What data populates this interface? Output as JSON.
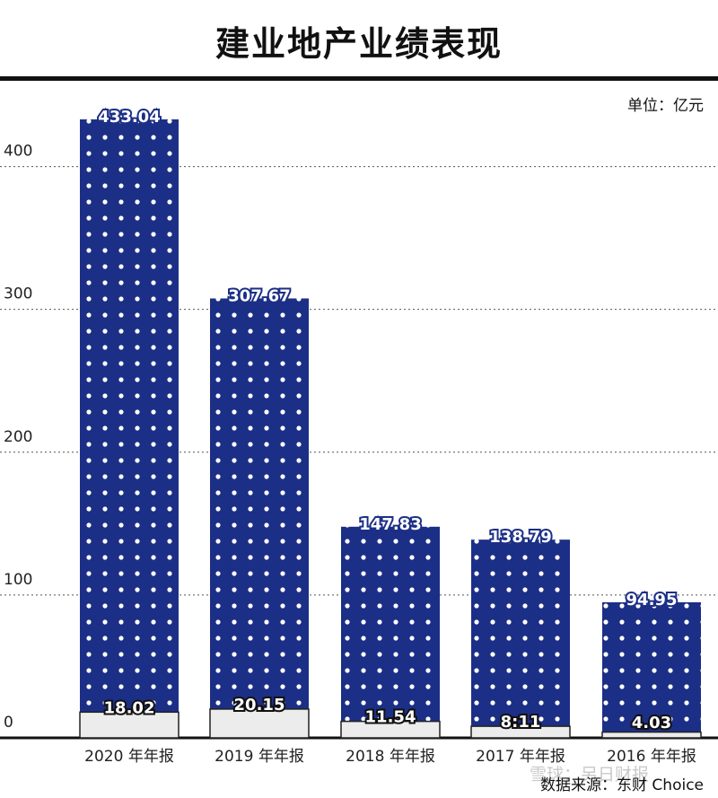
{
  "title": "建业地产业绩表现",
  "unit_label": "单位：亿元",
  "source_label": "数据来源：东财 Choice",
  "watermark": "雪球：另日财报",
  "colors": {
    "bar": "#1c2f86",
    "dots": "#ffffff",
    "sub_bar": "#ececec",
    "axis": "#111111"
  },
  "chart_data": {
    "type": "bar",
    "categories": [
      "2020 年年报",
      "2019 年年报",
      "2018 年年报",
      "2017 年年报",
      "2016 年年报"
    ],
    "series": [
      {
        "values": [
          433.04,
          307.67,
          147.83,
          138.79,
          94.95
        ],
        "labels": [
          "433.04",
          "307.67",
          "147.83",
          "138.79",
          "94.95"
        ]
      },
      {
        "values": [
          18.02,
          20.15,
          11.54,
          8.11,
          4.03
        ],
        "labels": [
          "18.02",
          "20.15",
          "11.54",
          "8:11",
          "4.03"
        ]
      }
    ],
    "yticks": [
      0,
      100,
      200,
      300,
      400
    ],
    "ylim": [
      0,
      433.04
    ],
    "grid": "dotted horizontal",
    "xlabel": "",
    "ylabel": ""
  }
}
